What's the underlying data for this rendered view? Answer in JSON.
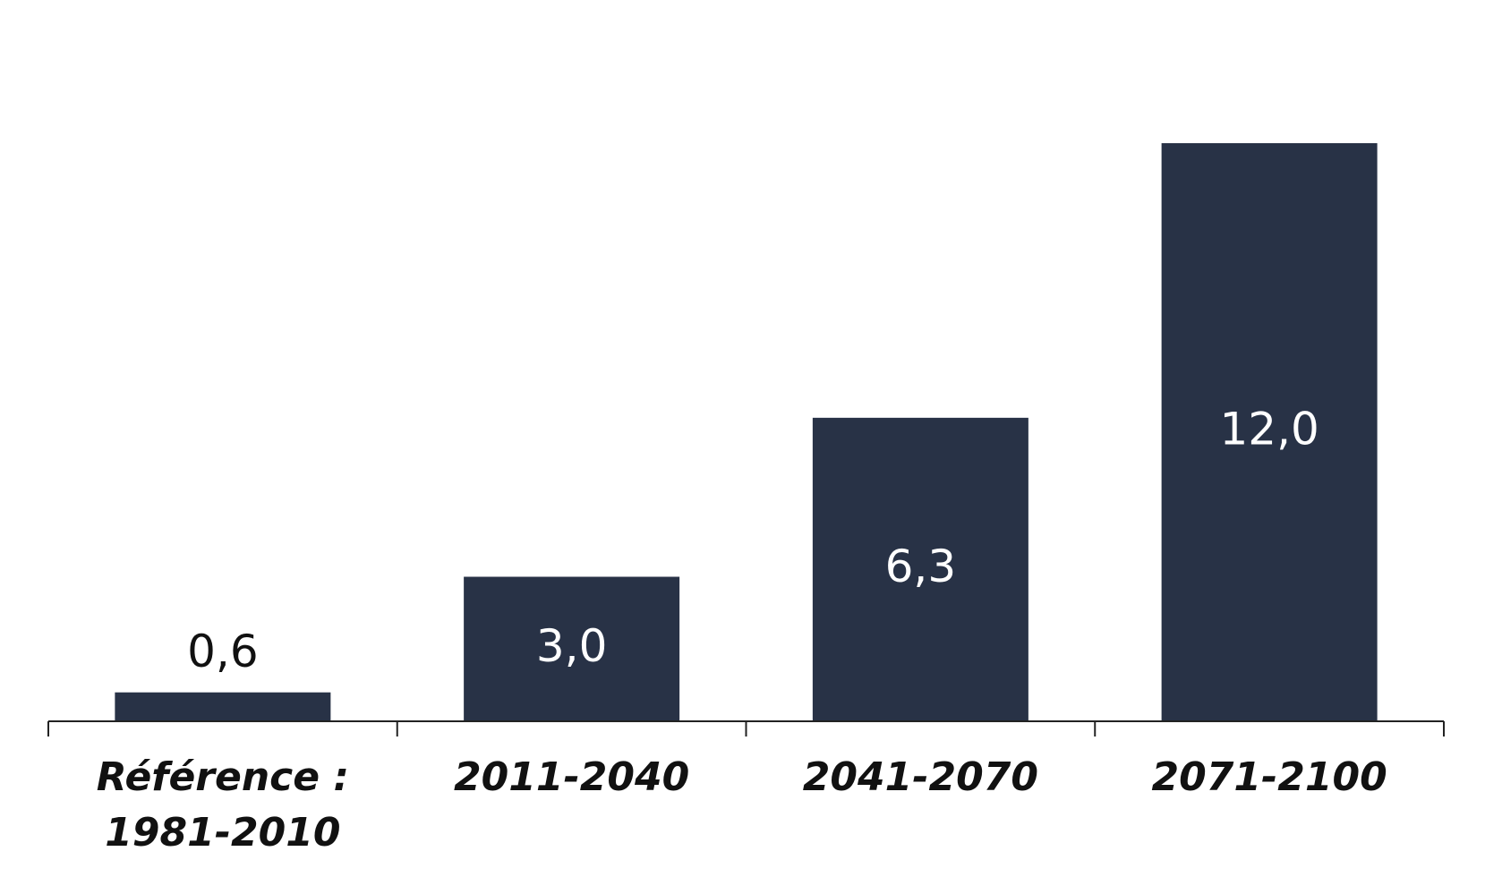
{
  "chart_data": {
    "type": "bar",
    "categories": [
      "Référence : 1981-2010",
      "2011-2040",
      "2041-2070",
      "2071-2100"
    ],
    "values": [
      0.6,
      3.0,
      6.3,
      12.0
    ],
    "value_labels": [
      "0,6",
      "3,0",
      "6,3",
      "12,0"
    ],
    "color": "#283246"
  }
}
